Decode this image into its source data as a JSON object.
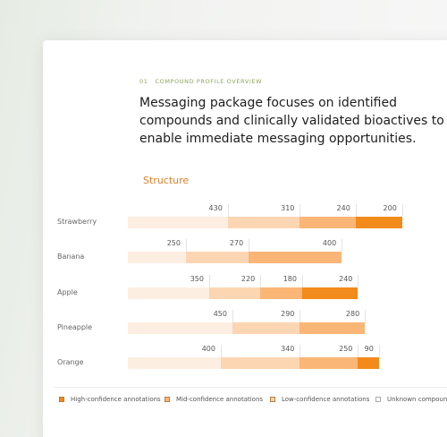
{
  "eyebrow": {
    "number": "01",
    "label": "COMPOUND PROFILE OVERVIEW"
  },
  "headline": [
    "Messaging package focuses on identified",
    "compounds and clinically validated bioactives to",
    "enable immediate messaging opportunities."
  ],
  "chart_data": {
    "type": "bar",
    "orientation": "horizontal",
    "stacked": true,
    "title": "Structure",
    "categories": [
      "Strawberry",
      "Banana",
      "Apple",
      "Pineapple",
      "Orange"
    ],
    "series": [
      {
        "name": "Unknown compounds",
        "color": "#fdeee2",
        "values": [
          430,
          250,
          350,
          450,
          400
        ]
      },
      {
        "name": "Low-confidence annotations",
        "color": "#fcd6b2",
        "values": [
          310,
          270,
          220,
          290,
          340
        ]
      },
      {
        "name": "Mid-confidence annotations",
        "color": "#f9b677",
        "values": [
          240,
          400,
          180,
          280,
          250
        ]
      },
      {
        "name": "High-confidence annotations",
        "color": "#f28a1c",
        "values": [
          200,
          null,
          240,
          null,
          90
        ]
      }
    ]
  }
}
